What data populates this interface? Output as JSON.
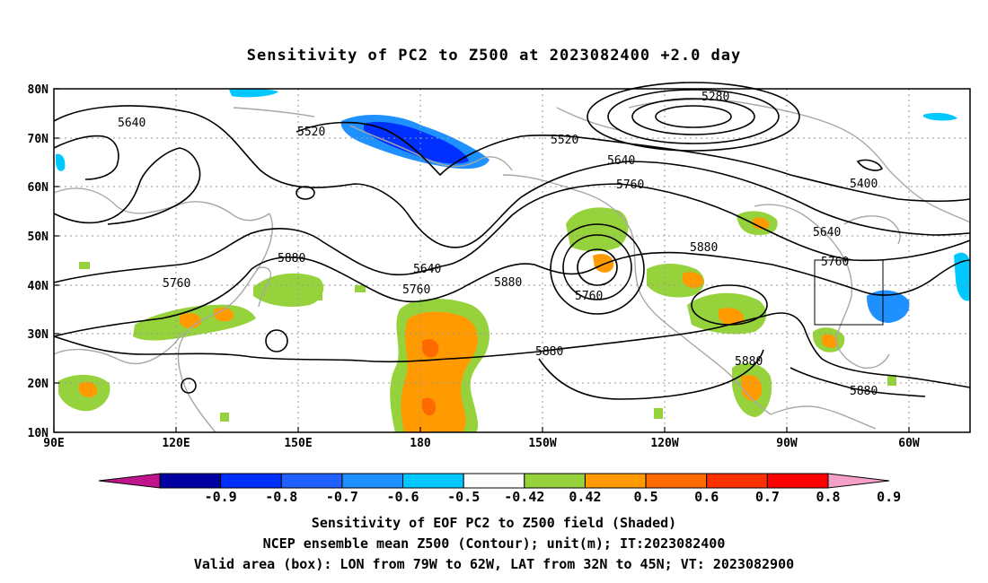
{
  "title": "Sensitivity of PC2 to Z500 at 2023082400 +2.0 day",
  "lat_labels": [
    "80N",
    "70N",
    "60N",
    "50N",
    "40N",
    "30N",
    "20N",
    "10N"
  ],
  "lon_labels": [
    "90E",
    "120E",
    "150E",
    "180",
    "150W",
    "120W",
    "90W",
    "60W"
  ],
  "contour_labels": [
    {
      "text": "5280"
    },
    {
      "text": "5520"
    },
    {
      "text": "5640"
    },
    {
      "text": "5520"
    },
    {
      "text": "5640"
    },
    {
      "text": "5760"
    },
    {
      "text": "5400"
    },
    {
      "text": "5640"
    },
    {
      "text": "5760"
    },
    {
      "text": "5880"
    },
    {
      "text": "5880"
    },
    {
      "text": "5760"
    },
    {
      "text": "5640"
    },
    {
      "text": "5760"
    },
    {
      "text": "5880"
    },
    {
      "text": "5760"
    },
    {
      "text": "5880"
    },
    {
      "text": "5880"
    },
    {
      "text": "5880"
    }
  ],
  "colorbar": {
    "labels": [
      "-0.9",
      "-0.8",
      "-0.7",
      "-0.6",
      "-0.5",
      "-0.42",
      "0.42",
      "0.5",
      "0.6",
      "0.7",
      "0.8",
      "0.9"
    ],
    "colors": [
      "#c0148c",
      "#0000a0",
      "#0030ff",
      "#2060ff",
      "#1e90ff",
      "#00c8ff",
      "#ffffff",
      "#96d23c",
      "#ff9a00",
      "#ff6a00",
      "#ff3000",
      "#ff0000",
      "#f4a0c8"
    ]
  },
  "captions": [
    "Sensitivity of EOF PC2 to Z500 field (Shaded)",
    "NCEP ensemble mean Z500 (Contour); unit(m); IT:2023082400",
    "Valid area (box): LON from 79W to 62W, LAT from 32N to 45N; VT: 2023082900"
  ],
  "valid_box": {
    "lon_min": -79,
    "lon_max": -62,
    "lat_min": 32,
    "lat_max": 45
  }
}
